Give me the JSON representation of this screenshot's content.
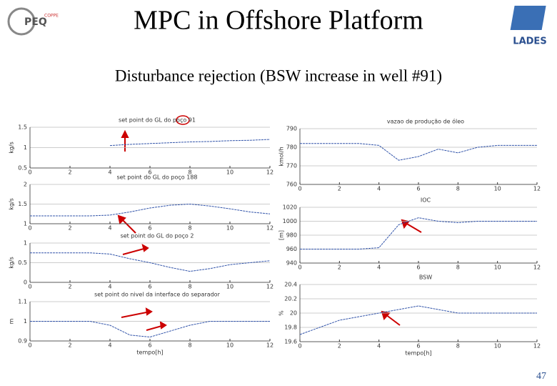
{
  "slide": {
    "title": "MPC in Offshore Platform",
    "subtitle": "Disturbance rejection (BSW increase in well #91)",
    "page_number": "47",
    "logo_left": "PEQ",
    "logo_left_small": "COPPE",
    "logo_right": "LADES"
  },
  "chart_data": [
    {
      "type": "line",
      "title": "set point do GL do poço 91",
      "y_label": "kg/s",
      "x": [
        0,
        1,
        2,
        3,
        4,
        5,
        6,
        7,
        8,
        9,
        10,
        11,
        12
      ],
      "series": [
        {
          "color": "#3355aa",
          "values": [
            null,
            null,
            null,
            null,
            1.05,
            1.08,
            1.1,
            1.12,
            1.14,
            1.15,
            1.17,
            1.18,
            1.2
          ]
        }
      ],
      "xlim": [
        0,
        12
      ],
      "xticks": [
        0,
        2,
        4,
        6,
        8,
        10,
        12
      ],
      "ylim": [
        0.5,
        1.5
      ],
      "yticks": [
        0.5,
        1,
        1.5
      ],
      "grid": true
    },
    {
      "type": "line",
      "title": "set point do GL do poço 188",
      "y_label": "kg/s",
      "x": [
        0,
        1,
        2,
        3,
        4,
        5,
        6,
        7,
        8,
        9,
        10,
        11,
        12
      ],
      "series": [
        {
          "color": "#3355aa",
          "values": [
            1.2,
            1.2,
            1.2,
            1.2,
            1.22,
            1.3,
            1.4,
            1.47,
            1.5,
            1.45,
            1.38,
            1.3,
            1.25
          ]
        }
      ],
      "xlim": [
        0,
        12
      ],
      "xticks": [
        0,
        2,
        4,
        6,
        8,
        10,
        12
      ],
      "ylim": [
        1,
        2
      ],
      "yticks": [
        1,
        1.5,
        2
      ],
      "grid": true
    },
    {
      "type": "line",
      "title": "set point do GL do poço 2",
      "y_label": "kg/s",
      "x": [
        0,
        1,
        2,
        3,
        4,
        5,
        6,
        7,
        8,
        9,
        10,
        11,
        12
      ],
      "series": [
        {
          "color": "#3355aa",
          "values": [
            0.75,
            0.75,
            0.75,
            0.75,
            0.72,
            0.6,
            0.5,
            0.38,
            0.28,
            0.35,
            0.45,
            0.5,
            0.55
          ]
        }
      ],
      "xlim": [
        0,
        12
      ],
      "xticks": [
        0,
        2,
        4,
        6,
        8,
        10,
        12
      ],
      "ylim": [
        0,
        1
      ],
      "yticks": [
        0,
        0.5,
        1
      ],
      "grid": true
    },
    {
      "type": "line",
      "title": "set point do nivel da interface do separador",
      "y_label": "m",
      "x_label": "tempo[h]",
      "x": [
        0,
        1,
        2,
        3,
        4,
        5,
        6,
        7,
        8,
        9,
        10,
        11,
        12
      ],
      "series": [
        {
          "color": "#3355aa",
          "values": [
            1,
            1,
            1,
            1,
            0.98,
            0.93,
            0.92,
            0.95,
            0.98,
            1,
            1,
            1,
            1
          ]
        }
      ],
      "xlim": [
        0,
        12
      ],
      "xticks": [
        0,
        2,
        4,
        6,
        8,
        10,
        12
      ],
      "ylim": [
        0.9,
        1.1
      ],
      "yticks": [
        0.9,
        1,
        1.1
      ],
      "grid": true
    },
    {
      "type": "line",
      "title": "vazao de produção de óleo",
      "y_label": "kmol/h",
      "x": [
        0,
        1,
        2,
        3,
        4,
        5,
        6,
        7,
        8,
        9,
        10,
        11,
        12
      ],
      "series": [
        {
          "color": "#3355aa",
          "values": [
            782,
            782,
            782,
            782,
            781,
            773,
            775,
            779,
            777,
            780,
            781,
            781,
            781
          ]
        }
      ],
      "xlim": [
        0,
        12
      ],
      "xticks": [
        0,
        2,
        4,
        6,
        8,
        10,
        12
      ],
      "ylim": [
        760,
        790
      ],
      "yticks": [
        760,
        770,
        780,
        790
      ],
      "grid": true
    },
    {
      "type": "line",
      "title": "IOC",
      "y_label": "[m]",
      "x": [
        0,
        1,
        2,
        3,
        4,
        5,
        6,
        7,
        8,
        9,
        10,
        11,
        12
      ],
      "series": [
        {
          "color": "#3355aa",
          "values": [
            960,
            960,
            960,
            960,
            962,
            995,
            1005,
            1000,
            998,
            1000,
            1000,
            1000,
            1000
          ]
        }
      ],
      "xlim": [
        0,
        12
      ],
      "xticks": [
        0,
        2,
        4,
        6,
        8,
        10,
        12
      ],
      "ylim": [
        940,
        1020
      ],
      "yticks": [
        940,
        960,
        980,
        1000,
        1020
      ],
      "grid": true
    },
    {
      "type": "line",
      "title": "BSW",
      "y_label": "%",
      "x_label": "tempo[h]",
      "x": [
        0,
        1,
        2,
        3,
        4,
        5,
        6,
        7,
        8,
        9,
        10,
        11,
        12
      ],
      "series": [
        {
          "color": "#3355aa",
          "values": [
            19.7,
            19.8,
            19.9,
            19.95,
            20,
            20.05,
            20.1,
            20.05,
            20,
            20,
            20,
            20,
            20
          ]
        }
      ],
      "xlim": [
        0,
        12
      ],
      "xticks": [
        0,
        2,
        4,
        6,
        8,
        10,
        12
      ],
      "ylim": [
        19.6,
        20.4
      ],
      "yticks": [
        19.6,
        19.8,
        20,
        20.2,
        20.4
      ],
      "grid": true
    }
  ]
}
